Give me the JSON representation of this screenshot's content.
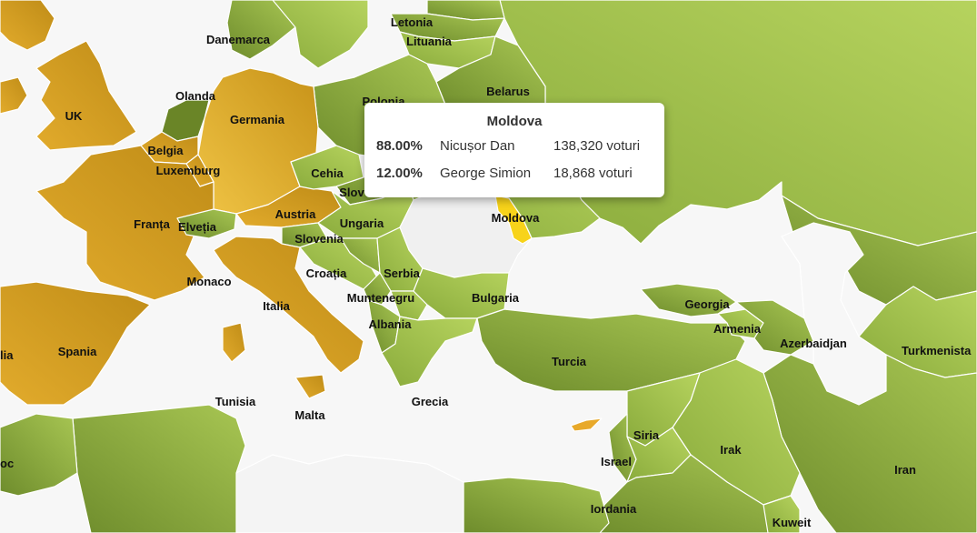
{
  "colors": {
    "sea": "#f7f7f7",
    "dan_dark": "#6e8c2c",
    "dan_light": "#a8c653",
    "simion_dark": "#c28f18",
    "simion_light": "#f0c040",
    "highlight": "#f7d31a",
    "no_data": "#f7f7f7"
  },
  "labels": {
    "danemarca": "Danemarca",
    "letonia": "Letonia",
    "lituania": "Lituania",
    "olanda": "Olanda",
    "uk": "UK",
    "germania": "Germania",
    "polonia": "Polonia",
    "belarus": "Belarus",
    "belgia": "Belgia",
    "luxemburg": "Luxemburg",
    "cehia": "Cehia",
    "slovacia": "Slov",
    "franta": "Franța",
    "elvetia": "Elveția",
    "austria": "Austria",
    "ungaria": "Ungaria",
    "moldova": "Moldova",
    "slovenia": "Slovenia",
    "croatia": "Croația",
    "serbia": "Serbia",
    "monaco": "Monaco",
    "muntenegru": "Muntenegru",
    "bulgaria": "Bulgaria",
    "italia": "Italia",
    "albania": "Albania",
    "georgia": "Georgia",
    "armenia": "Armenia",
    "azerbaidjan": "Azerbaidjan",
    "turkmenistan": "Turkmenista",
    "spania": "Spania",
    "portugalia": "lia",
    "turcia": "Turcia",
    "tunisia": "Tunisia",
    "malta": "Malta",
    "grecia": "Grecia",
    "siria": "Siria",
    "irak": "Irak",
    "maroc": "oc",
    "israel": "Israel",
    "iran": "Iran",
    "iordania": "Iordania",
    "kuweit": "Kuweit"
  },
  "tooltip": {
    "title": "Moldova",
    "rows": [
      {
        "percent": "88.00%",
        "candidate": "Nicușor Dan",
        "votes": "138,320 voturi"
      },
      {
        "percent": "12.00%",
        "candidate": "George Simion",
        "votes": "18,868 voturi"
      }
    ]
  }
}
